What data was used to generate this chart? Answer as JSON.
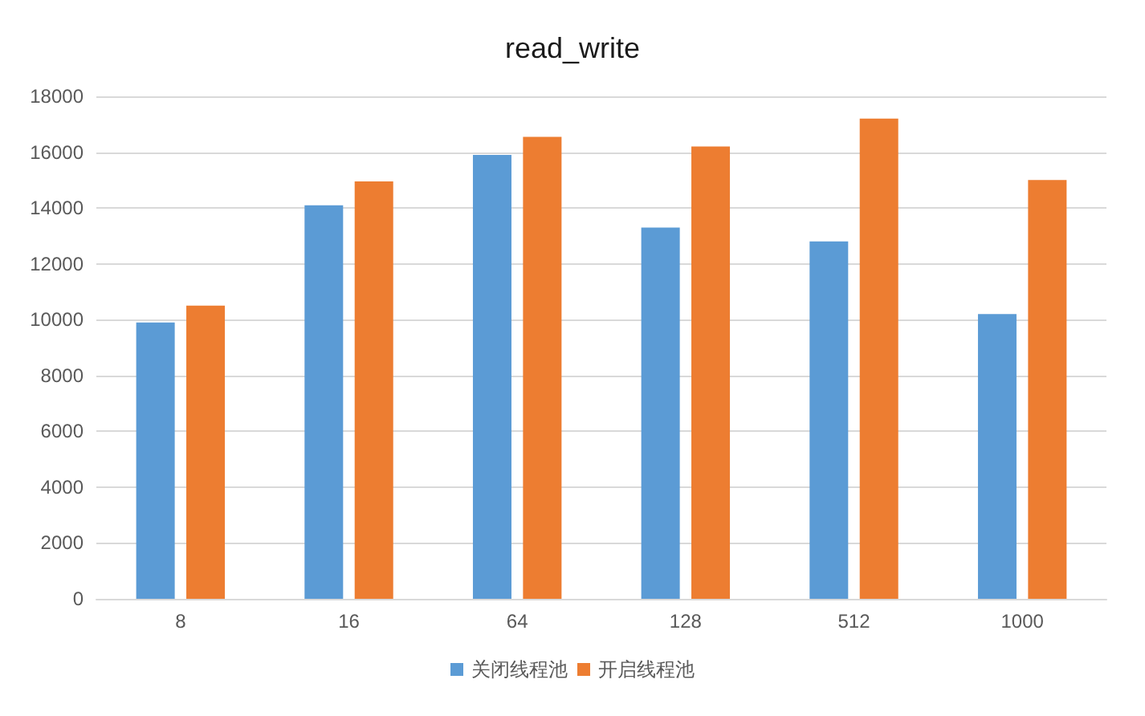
{
  "chart_data": {
    "type": "bar",
    "title": "read_write",
    "categories": [
      "8",
      "16",
      "64",
      "128",
      "512",
      "1000"
    ],
    "series": [
      {
        "name": "关闭线程池",
        "color": "#5b9bd5",
        "values": [
          9900,
          14100,
          15900,
          13300,
          12800,
          10200
        ]
      },
      {
        "name": "开启线程池",
        "color": "#ed7d31",
        "values": [
          10500,
          14950,
          16550,
          16200,
          17200,
          15000
        ]
      }
    ],
    "ylim": [
      0,
      18000
    ],
    "yticks": [
      0,
      2000,
      4000,
      6000,
      8000,
      10000,
      12000,
      14000,
      16000,
      18000
    ],
    "grid": "y",
    "legend": "bottom"
  }
}
